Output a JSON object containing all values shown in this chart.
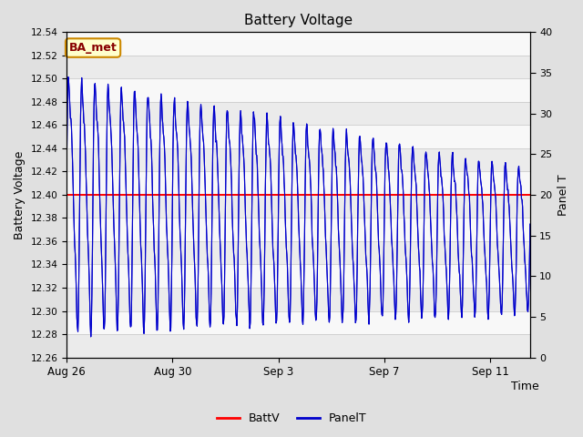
{
  "title": "Battery Voltage",
  "xlabel": "Time",
  "ylabel_left": "Battery Voltage",
  "ylabel_right": "Panel T",
  "ylim_left": [
    12.26,
    12.54
  ],
  "ylim_right": [
    0,
    40
  ],
  "yticks_left": [
    12.26,
    12.28,
    12.3,
    12.32,
    12.34,
    12.36,
    12.38,
    12.4,
    12.42,
    12.44,
    12.46,
    12.48,
    12.5,
    12.52,
    12.54
  ],
  "yticks_right": [
    0,
    5,
    10,
    15,
    20,
    25,
    30,
    35,
    40
  ],
  "batt_v": 12.4,
  "batt_color": "#ff0000",
  "panel_color": "#0000cc",
  "fig_bg_color": "#e0e0e0",
  "plot_bg_color": "#ffffff",
  "grid_color": "#cccccc",
  "legend_labels": [
    "BattV",
    "PanelT"
  ],
  "annotation_text": "BA_met",
  "annotation_bg": "#ffffcc",
  "annotation_border": "#cc8800",
  "annotation_text_color": "#880000",
  "x_tick_labels": [
    "Aug 26",
    "Aug 30",
    "Sep 3",
    "Sep 7",
    "Sep 11"
  ],
  "x_tick_days_from_aug26": [
    0,
    4,
    8,
    12,
    16
  ],
  "xlim": [
    0,
    17.5
  ]
}
